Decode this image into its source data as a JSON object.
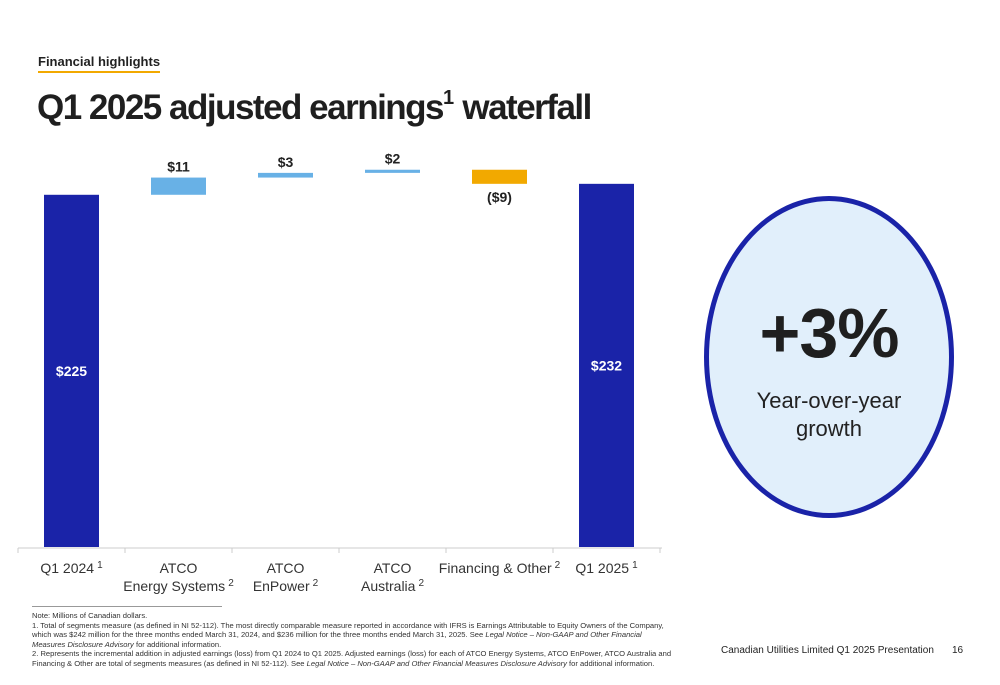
{
  "header": {
    "section": "Financial highlights",
    "title": "Q1 2025 adjusted earnings",
    "title_sup": "1",
    "title_rest": " waterfall"
  },
  "chart_data": {
    "type": "bar",
    "subtype": "waterfall",
    "unit": "Millions of Canadian dollars",
    "categories": [
      {
        "line1": "Q1 2024",
        "line2": "",
        "sup": "1"
      },
      {
        "line1": "ATCO",
        "line2": "Energy Systems",
        "sup": "2"
      },
      {
        "line1": "ATCO",
        "line2": "EnPower",
        "sup": "2"
      },
      {
        "line1": "ATCO",
        "line2": "Australia",
        "sup": "2"
      },
      {
        "line1": "Financing & Other",
        "line2": "",
        "sup": "2"
      },
      {
        "line1": "Q1 2025",
        "line2": "",
        "sup": "1"
      }
    ],
    "values": [
      225,
      11,
      3,
      2,
      -9,
      232
    ],
    "bar_kinds": [
      "total",
      "increase",
      "increase",
      "increase",
      "decrease",
      "total"
    ],
    "labels": [
      "$225",
      "$11",
      "$3",
      "$2",
      "($9)",
      "$232"
    ],
    "ylim": [
      0,
      260
    ],
    "colors": {
      "total": "#1a23a8",
      "increase": "#68b1e6",
      "decrease": "#f2a900"
    }
  },
  "callout": {
    "value": "+3%",
    "caption": "Year-over-year growth"
  },
  "notes": {
    "unit_note": "Note: Millions of Canadian dollars.",
    "note1_text": "1. Total of segments measure (as defined in NI 52-112). The most directly comparable measure reported in accordance with IFRS is Earnings Attributable to Equity Owners of the Company, which was $242 million for the three months ended March 31, 2024, and $236 million for the three months ended March 31, 2025.  See ",
    "note1_italic": "Legal Notice – Non-GAAP and Other Financial Measures Disclosure Advisory",
    "note1_end": " for additional information.",
    "note2_text": "2. Represents the incremental addition in adjusted earnings (loss) from Q1 2024 to Q1 2025. Adjusted earnings (loss) for each of ATCO Energy Systems, ATCO EnPower, ATCO Australia and Financing & Other are total of segments measures (as defined in NI 52-112). See ",
    "note2_italic": "Legal Notice – Non-GAAP and Other Financial Measures Disclosure Advisory",
    "note2_end": " for additional information."
  },
  "footer": {
    "presentation": "Canadian Utilities Limited Q1 2025 Presentation",
    "page": "16"
  }
}
